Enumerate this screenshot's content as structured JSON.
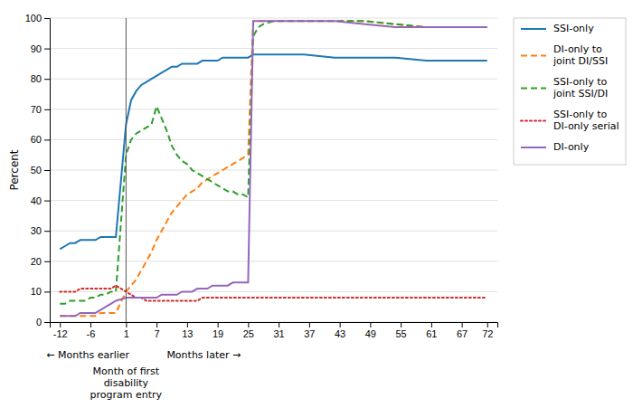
{
  "chart_data": {
    "type": "line",
    "y_label": "Percent",
    "x": [
      -12,
      -11,
      -10,
      -9,
      -8,
      -7,
      -6,
      -5,
      -4,
      -3,
      -2,
      -1,
      1,
      2,
      3,
      4,
      5,
      6,
      7,
      8,
      9,
      10,
      11,
      12,
      13,
      14,
      15,
      16,
      17,
      18,
      19,
      20,
      21,
      22,
      23,
      24,
      25,
      26,
      27,
      28,
      30,
      36,
      42,
      48,
      54,
      60,
      66,
      72
    ],
    "series": [
      {
        "name": "SSI-only",
        "line_style": "solid",
        "values": [
          24,
          25,
          26,
          26,
          27,
          27,
          27,
          27,
          28,
          28,
          28,
          28,
          65,
          73,
          76,
          78,
          79,
          80,
          81,
          82,
          83,
          84,
          84,
          85,
          85,
          85,
          85,
          86,
          86,
          86,
          86,
          87,
          87,
          87,
          87,
          87,
          87,
          88,
          88,
          88,
          88,
          88,
          87,
          87,
          87,
          86,
          86,
          86
        ]
      },
      {
        "name": "DI-only to\njoint DI/SSI",
        "line_style": "dashed",
        "values": [
          2,
          2,
          2,
          2,
          2,
          2,
          2,
          2,
          3,
          3,
          3,
          3,
          10,
          12,
          14,
          17,
          20,
          23,
          27,
          30,
          33,
          36,
          38,
          40,
          42,
          43,
          44,
          46,
          47,
          48,
          49,
          50,
          51,
          52,
          53,
          54,
          55,
          99,
          99,
          99,
          99,
          99,
          99,
          99,
          98,
          97,
          97,
          97
        ]
      },
      {
        "name": "SSI-only to\njoint SSI/DI",
        "line_style": "dashed",
        "values": [
          6,
          6,
          7,
          7,
          7,
          7,
          8,
          8,
          9,
          9,
          10,
          10,
          55,
          60,
          62,
          63,
          64,
          65,
          71,
          67,
          63,
          58,
          55,
          53,
          52,
          50,
          49,
          48,
          47,
          46,
          45,
          44,
          43,
          43,
          42,
          42,
          41,
          94,
          97,
          98,
          99,
          99,
          99,
          99,
          98,
          97,
          97,
          97
        ]
      },
      {
        "name": "SSI-only to\nDI-only serial",
        "line_style": "dotted",
        "values": [
          10,
          10,
          10,
          10,
          11,
          11,
          11,
          11,
          11,
          11,
          11,
          12,
          10,
          9,
          8,
          8,
          7,
          7,
          7,
          7,
          7,
          7,
          7,
          7,
          7,
          7,
          7,
          8,
          8,
          8,
          8,
          8,
          8,
          8,
          8,
          8,
          8,
          8,
          8,
          8,
          8,
          8,
          8,
          8,
          8,
          8,
          8,
          8
        ]
      },
      {
        "name": "DI-only",
        "line_style": "solid",
        "values": [
          2,
          2,
          2,
          2,
          3,
          3,
          3,
          3,
          4,
          5,
          6,
          7,
          8,
          8,
          8,
          8,
          8,
          8,
          8,
          9,
          9,
          9,
          9,
          10,
          10,
          10,
          11,
          11,
          11,
          12,
          12,
          12,
          12,
          13,
          13,
          13,
          13,
          99,
          99,
          99,
          99,
          99,
          99,
          98,
          97,
          97,
          97,
          97
        ]
      }
    ],
    "xlim": [
      -14,
      74
    ],
    "xticks": [
      -12,
      -6,
      1,
      7,
      13,
      19,
      25,
      31,
      37,
      43,
      49,
      55,
      61,
      67,
      72
    ],
    "ylim": [
      0,
      100
    ],
    "yticks": [
      0,
      10,
      20,
      30,
      40,
      50,
      60,
      70,
      80,
      90,
      100
    ],
    "grid": true,
    "legend": "upper right",
    "vline": {
      "x": 1,
      "text": "Month of first\ndisability\nprogram entry"
    },
    "annotations": [
      "← Months earlier",
      "Months later →"
    ]
  }
}
